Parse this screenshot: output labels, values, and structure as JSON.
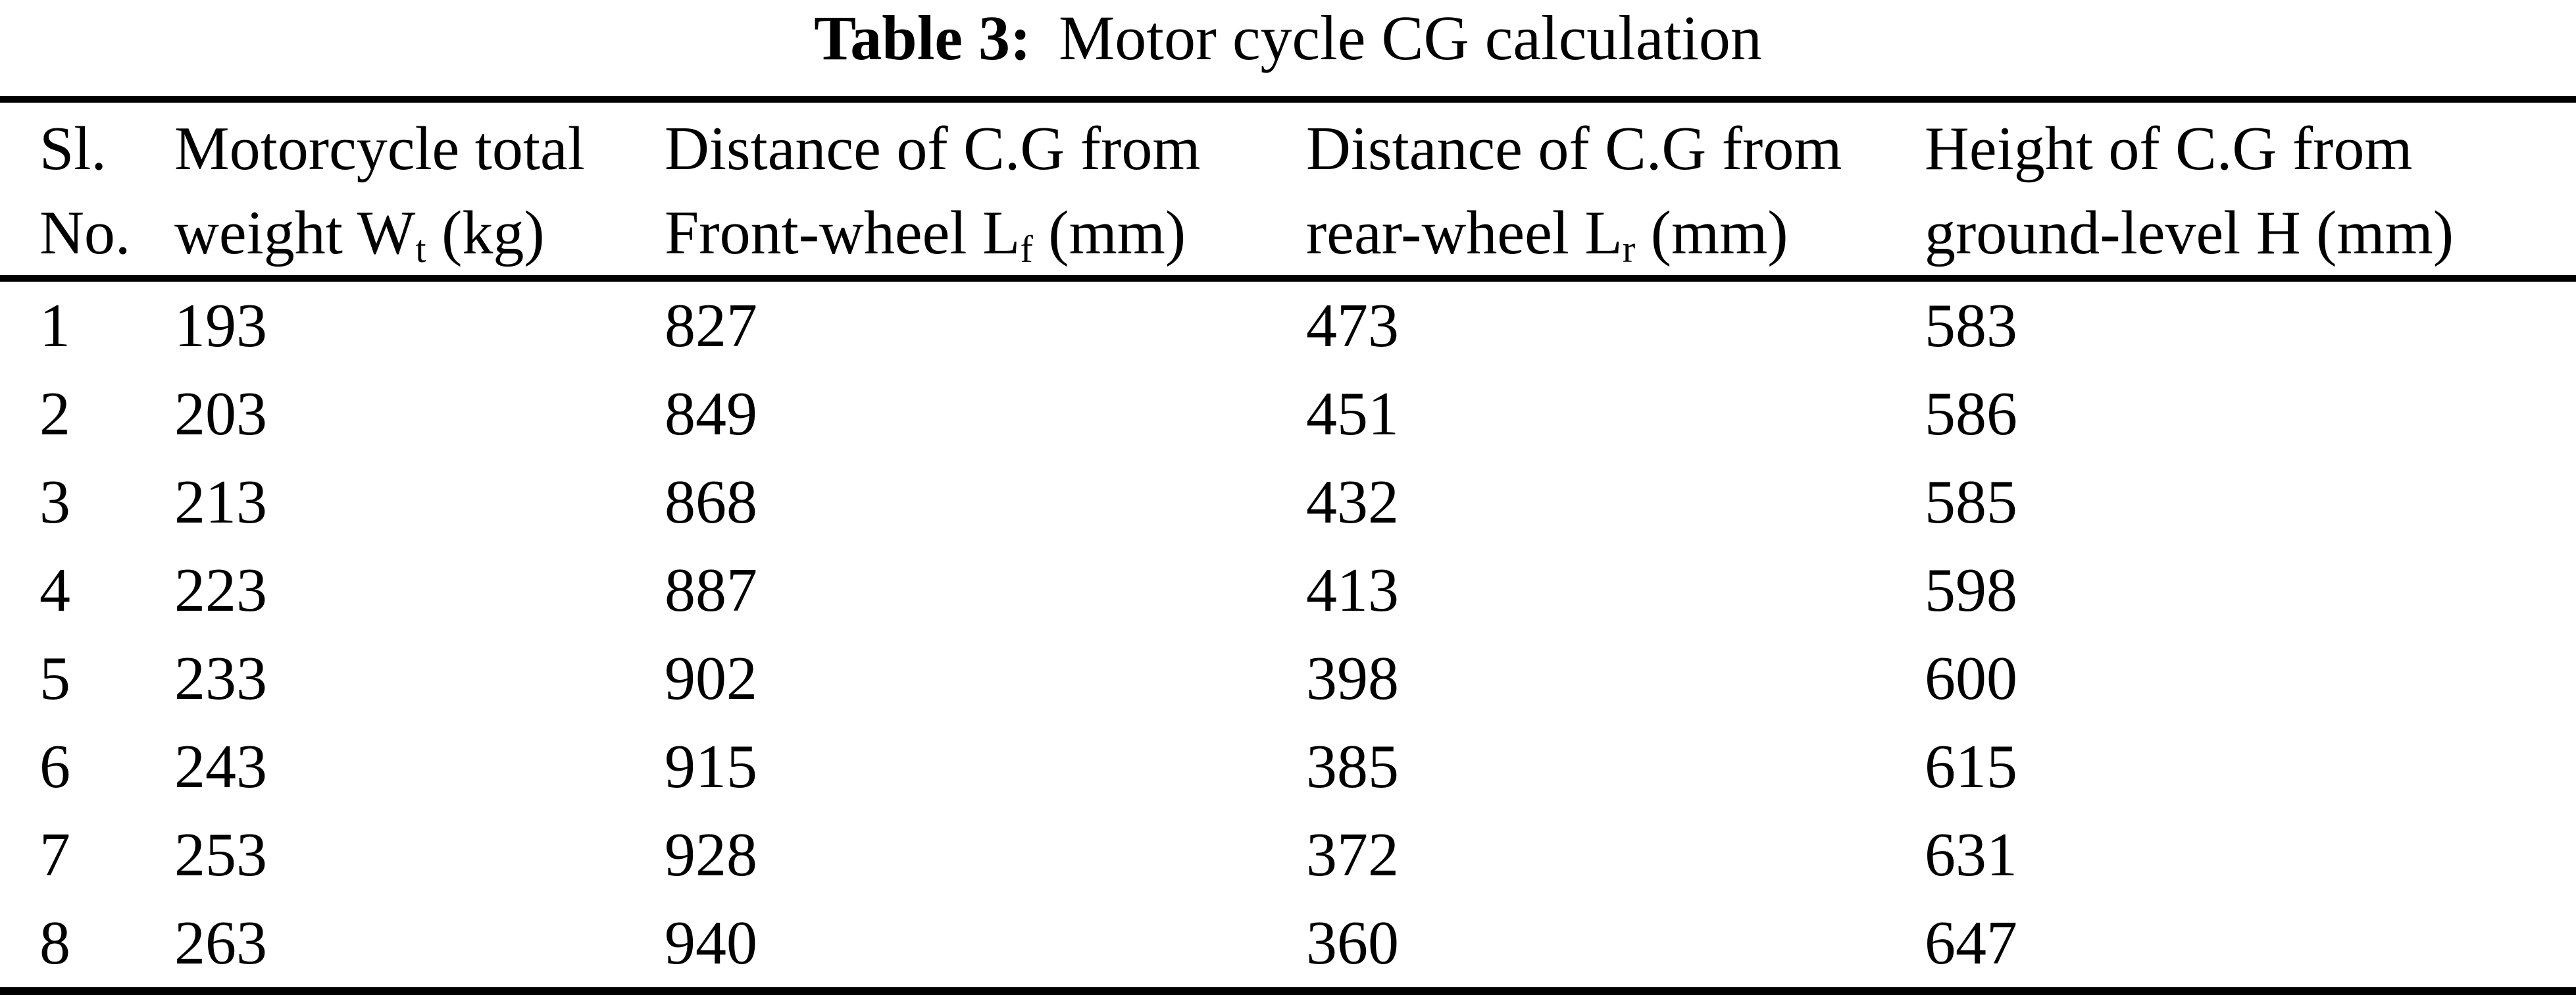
{
  "caption": {
    "label": "Table 3:",
    "text": "Motor cycle CG calculation"
  },
  "table": {
    "headers": [
      {
        "line1": "Sl.",
        "line2_pre": "No.",
        "sub": "",
        "line2_post": ""
      },
      {
        "line1": "Motorcycle total",
        "line2_pre": "weight W",
        "sub": "t",
        "line2_post": " (kg)"
      },
      {
        "line1": "Distance of C.G from",
        "line2_pre": "Front-wheel L",
        "sub": "f",
        "line2_post": " (mm)"
      },
      {
        "line1": "Distance of C.G from",
        "line2_pre": "rear-wheel L",
        "sub": "r",
        "line2_post": " (mm)"
      },
      {
        "line1": "Height of C.G from",
        "line2_pre": "ground-level H",
        "sub": "",
        "line2_post": " (mm)"
      }
    ],
    "rows": [
      [
        "1",
        "193",
        "827",
        "473",
        "583"
      ],
      [
        "2",
        "203",
        "849",
        "451",
        "586"
      ],
      [
        "3",
        "213",
        "868",
        "432",
        "585"
      ],
      [
        "4",
        "223",
        "887",
        "413",
        "598"
      ],
      [
        "5",
        "233",
        "902",
        "398",
        "600"
      ],
      [
        "6",
        "243",
        "915",
        "385",
        "615"
      ],
      [
        "7",
        "253",
        "928",
        "372",
        "631"
      ],
      [
        "8",
        "263",
        "940",
        "360",
        "647"
      ]
    ]
  },
  "colors": {
    "text": "#000000",
    "background": "#ffffff",
    "rule": "#000000"
  }
}
